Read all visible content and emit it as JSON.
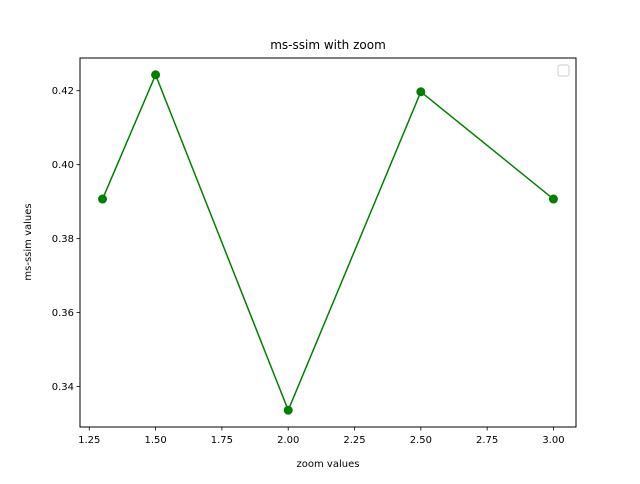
{
  "chart_data": {
    "type": "line",
    "title": "ms-ssim with zoom",
    "xlabel": "zoom values",
    "ylabel": "ms-ssim values",
    "x": [
      1.3,
      1.5,
      2.0,
      2.5,
      3.0
    ],
    "series": [
      {
        "values": [
          0.3907,
          0.4243,
          0.3336,
          0.4197,
          0.3907
        ],
        "color": "#008000",
        "marker": "circle"
      }
    ],
    "xlim": [
      1.215,
      3.085
    ],
    "ylim": [
      0.32906,
      0.42884
    ],
    "xticks": [
      "1.25",
      "1.50",
      "1.75",
      "2.00",
      "2.25",
      "2.50",
      "2.75",
      "3.00"
    ],
    "yticks": [
      "0.34",
      "0.36",
      "0.38",
      "0.40",
      "0.42"
    ],
    "grid": false,
    "legend": "upper right, empty"
  }
}
